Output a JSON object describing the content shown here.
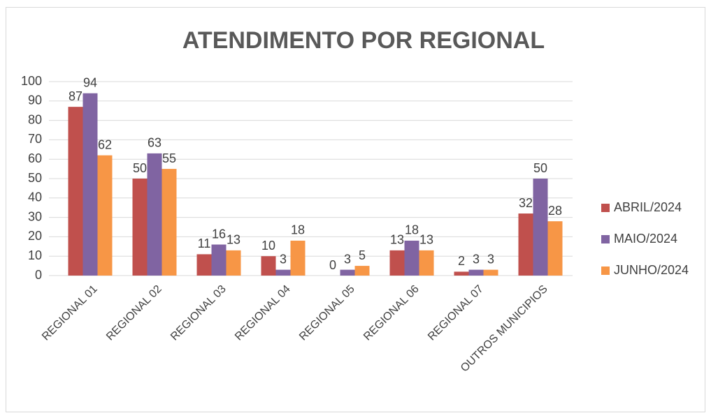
{
  "chart_data": {
    "type": "bar",
    "title": "ATENDIMENTO POR REGIONAL",
    "categories": [
      "REGIONAL 01",
      "REGIONAL 02",
      "REGIONAL 03",
      "REGIONAL 04",
      "REGIONAL 05",
      "REGIONAL 06",
      "REGIONAL 07",
      "OUTROS MUNICIPIOS"
    ],
    "series": [
      {
        "name": "ABRIL/2024",
        "color": "#c0504d",
        "values": [
          87,
          50,
          11,
          10,
          0,
          13,
          2,
          32
        ]
      },
      {
        "name": "MAIO/2024",
        "color": "#8064a2",
        "values": [
          94,
          63,
          16,
          3,
          3,
          18,
          3,
          50
        ]
      },
      {
        "name": "JUNHO/2024",
        "color": "#f79646",
        "values": [
          62,
          55,
          13,
          18,
          5,
          13,
          3,
          28
        ]
      }
    ],
    "ylim": [
      0,
      100
    ],
    "yticks": [
      0,
      10,
      20,
      30,
      40,
      50,
      60,
      70,
      80,
      90,
      100
    ],
    "grid": true,
    "legend": "right"
  }
}
